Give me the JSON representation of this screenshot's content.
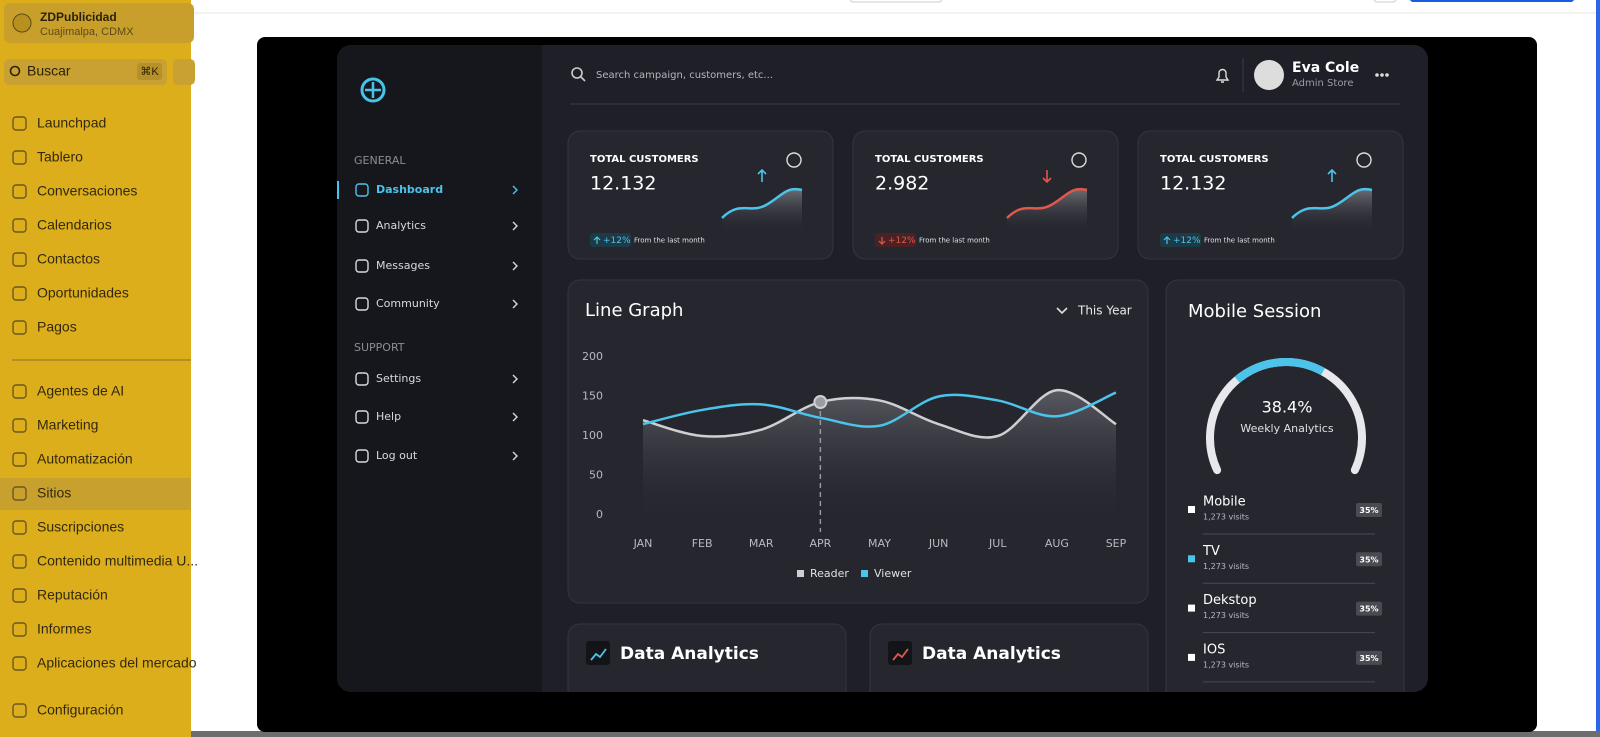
{
  "workspace": {
    "name": "ZDPublicidad",
    "location": "Cuajimalpa, CDMX"
  },
  "search": {
    "placeholder": "Buscar",
    "shortcut": "⌘K"
  },
  "nav": {
    "items": [
      "Launchpad",
      "Tablero",
      "Conversaciones",
      "Calendarios",
      "Contactos",
      "Oportunidades",
      "Pagos",
      "Agentes de AI",
      "Marketing",
      "Automatización",
      "Sitios",
      "Suscripciones",
      "Contenido multimedia U...",
      "Reputación",
      "Informes",
      "Aplicaciones del mercado",
      "Configuración"
    ],
    "active": "Sitios"
  },
  "dashboard": {
    "search_placeholder": "Search campaign, customers, etc...",
    "user": {
      "name": "Eva Cole",
      "role": "Admin Store"
    },
    "menu": [
      {
        "title": "GENERAL",
        "items": [
          "Dashboard",
          "Analytics",
          "Messages",
          "Community"
        ]
      },
      {
        "title": "SUPPORT",
        "items": [
          "Settings",
          "Help",
          "Log out"
        ]
      }
    ],
    "menu_active": "Dashboard",
    "stats": [
      {
        "label": "TOTAL CUSTOMERS",
        "value": "12.132",
        "change": "+12%",
        "note": "From the last month",
        "color": "#4cc3ea"
      },
      {
        "label": "TOTAL CUSTOMERS",
        "value": "2.982",
        "change": "+12%",
        "note": "From the last month",
        "color": "#e2574c"
      },
      {
        "label": "TOTAL CUSTOMERS",
        "value": "12.132",
        "change": "+12%",
        "note": "From the last month",
        "color": "#4cc3ea"
      }
    ],
    "line_graph": {
      "type": "line",
      "title": "Line Graph",
      "period": "This Year",
      "categories": [
        "JAN",
        "FEB",
        "MAR",
        "APR",
        "MAY",
        "JUN",
        "JUL",
        "AUG",
        "SEP"
      ],
      "ylim": [
        0,
        200
      ],
      "yticks": [
        0,
        50,
        100,
        150,
        200
      ],
      "series": [
        {
          "name": "Reader",
          "color": "#cfcfd2",
          "values": [
            120,
            100,
            108,
            143,
            145,
            115,
            100,
            158,
            115
          ]
        },
        {
          "name": "Viewer",
          "color": "#4cc3ea",
          "values": [
            115,
            133,
            140,
            123,
            113,
            150,
            145,
            125,
            155
          ]
        }
      ]
    },
    "mobile_session": {
      "title": "Mobile Session",
      "value": 38.4,
      "value_label": "38.4%",
      "caption": "Weekly Analytics",
      "devices": [
        {
          "name": "Mobile",
          "visits": "1,273 visits",
          "share": "35%",
          "color": "#ffffff"
        },
        {
          "name": "TV",
          "visits": "1,273 visits",
          "share": "35%",
          "color": "#4cc3ea"
        },
        {
          "name": "Dekstop",
          "visits": "1,273 visits",
          "share": "35%",
          "color": "#ffffff"
        },
        {
          "name": "IOS",
          "visits": "1,273 visits",
          "share": "35%",
          "color": "#ffffff"
        }
      ]
    },
    "analytics_cards": [
      {
        "title": "Data Analytics",
        "color": "#4cc3ea"
      },
      {
        "title": "Data Analytics",
        "color": "#e2574c"
      }
    ]
  }
}
